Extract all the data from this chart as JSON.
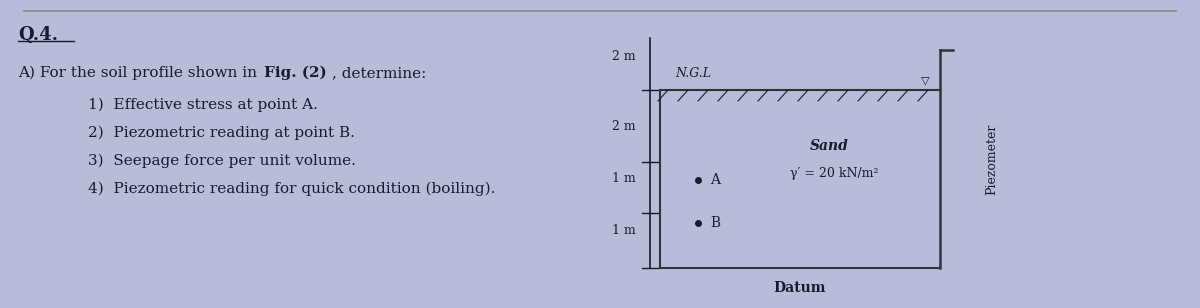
{
  "bg_color": "#b8bcd8",
  "title": "Q.4.",
  "items": [
    "1)  Effective stress at point A.",
    "2)  Piezometric reading at point B.",
    "3)  Seepage force per unit volume.",
    "4)  Piezometric reading for quick condition (boiling)."
  ],
  "diagram": {
    "ngl_label": "N.G.L",
    "sand_label": "Sand",
    "gamma_label": "γ′ = 20 kN/m²",
    "point_a": "A",
    "point_b": "B",
    "datum_label": "Datum",
    "piezometer_label": "Piezometer",
    "box_color": "#333333",
    "water_symbol": "▽",
    "left_labels": [
      "2 m",
      "2 m",
      "1 m",
      "1 m"
    ]
  },
  "top_separator_color": "#888888",
  "text_color": "#1a1a2e",
  "fontsize_title": 13,
  "fontsize_body": 11,
  "fontsize_diagram": 9
}
